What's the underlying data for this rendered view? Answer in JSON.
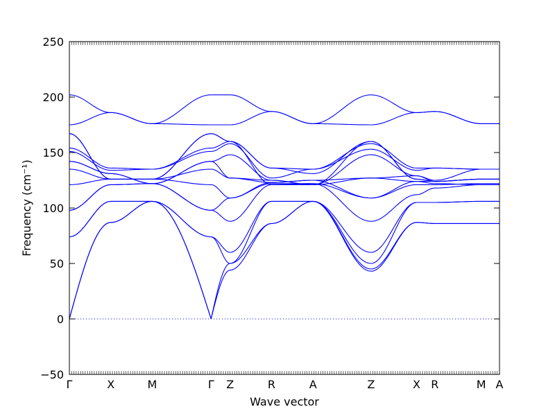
{
  "chart_data": {
    "type": "line",
    "title": "",
    "xlabel": "Wave vector",
    "ylabel": "Frequency (cm⁻¹)",
    "ylim": [
      -50,
      250
    ],
    "yticks": [
      -50,
      0,
      50,
      100,
      150,
      200,
      250
    ],
    "grid": false,
    "legend": "none",
    "line_color": "#0000ff",
    "zero_line_color": "#0000ff",
    "xlabels": [
      "Γ",
      "X",
      "M",
      "Γ",
      "Z",
      "R",
      "A",
      "Z",
      "X",
      "R",
      "M",
      "A"
    ],
    "xlabel_positions": [
      0.0,
      0.5,
      1.0,
      1.71,
      1.94,
      2.44,
      2.94,
      3.64,
      4.19,
      4.41,
      4.97,
      5.19
    ],
    "x_range": [
      0.0,
      5.19
    ],
    "segments": [
      {
        "from": 0.0,
        "to": 0.5,
        "bands": [
          [
            0,
            87
          ],
          [
            0,
            87
          ],
          [
            74,
            106
          ],
          [
            74,
            106
          ],
          [
            98,
            121
          ],
          [
            98,
            121
          ],
          [
            121,
            126
          ],
          [
            135,
            126
          ],
          [
            142,
            131
          ],
          [
            142,
            131
          ],
          [
            151,
            134
          ],
          [
            154,
            136
          ],
          [
            167,
            126
          ],
          [
            167,
            126
          ],
          [
            175,
            186
          ],
          [
            202,
            186
          ]
        ]
      },
      {
        "from": 0.5,
        "to": 1.0,
        "bands": [
          [
            87,
            106
          ],
          [
            87,
            106
          ],
          [
            106,
            106
          ],
          [
            106,
            106
          ],
          [
            121,
            122
          ],
          [
            121,
            122
          ],
          [
            126,
            126
          ],
          [
            126,
            126
          ],
          [
            131,
            122
          ],
          [
            131,
            122
          ],
          [
            134,
            135
          ],
          [
            136,
            135
          ],
          [
            126,
            126
          ],
          [
            126,
            126
          ],
          [
            186,
            176
          ],
          [
            186,
            176
          ]
        ]
      },
      {
        "from": 1.0,
        "to": 1.71,
        "bands": [
          [
            106,
            0
          ],
          [
            106,
            0
          ],
          [
            106,
            74
          ],
          [
            106,
            74
          ],
          [
            122,
            98
          ],
          [
            122,
            98
          ],
          [
            126,
            121
          ],
          [
            126,
            135
          ],
          [
            122,
            142
          ],
          [
            122,
            142
          ],
          [
            135,
            151
          ],
          [
            135,
            154
          ],
          [
            126,
            167
          ],
          [
            126,
            167
          ],
          [
            176,
            175
          ],
          [
            176,
            202
          ]
        ]
      },
      {
        "from": 1.71,
        "to": 1.94,
        "bands": [
          [
            0,
            44
          ],
          [
            0,
            50
          ],
          [
            74,
            50
          ],
          [
            74,
            60
          ],
          [
            98,
            88
          ],
          [
            98,
            109
          ],
          [
            121,
            109
          ],
          [
            135,
            127
          ],
          [
            142,
            127
          ],
          [
            142,
            148
          ],
          [
            151,
            158
          ],
          [
            154,
            160
          ],
          [
            167,
            160
          ],
          [
            167,
            160
          ],
          [
            175,
            175
          ],
          [
            202,
            202
          ]
        ]
      },
      {
        "from": 1.94,
        "to": 2.44,
        "bands": [
          [
            44,
            86
          ],
          [
            50,
            86
          ],
          [
            50,
            106
          ],
          [
            60,
            106
          ],
          [
            88,
            121
          ],
          [
            109,
            122
          ],
          [
            109,
            123
          ],
          [
            127,
            123
          ],
          [
            127,
            125
          ],
          [
            148,
            125
          ],
          [
            158,
            127
          ],
          [
            160,
            136
          ],
          [
            160,
            136
          ],
          [
            160,
            121
          ],
          [
            175,
            187
          ],
          [
            202,
            187
          ]
        ]
      },
      {
        "from": 2.44,
        "to": 2.94,
        "bands": [
          [
            86,
            106
          ],
          [
            86,
            106
          ],
          [
            106,
            106
          ],
          [
            106,
            106
          ],
          [
            121,
            122
          ],
          [
            122,
            122
          ],
          [
            123,
            125
          ],
          [
            123,
            125
          ],
          [
            125,
            121
          ],
          [
            125,
            121
          ],
          [
            127,
            135
          ],
          [
            136,
            135
          ],
          [
            136,
            131
          ],
          [
            121,
            121
          ],
          [
            187,
            176
          ],
          [
            187,
            176
          ]
        ]
      },
      {
        "from": 2.94,
        "to": 3.64,
        "bands": [
          [
            106,
            43
          ],
          [
            106,
            45
          ],
          [
            106,
            50
          ],
          [
            106,
            60
          ],
          [
            122,
            88
          ],
          [
            122,
            109
          ],
          [
            125,
            109
          ],
          [
            125,
            127
          ],
          [
            121,
            127
          ],
          [
            121,
            148
          ],
          [
            135,
            153
          ],
          [
            135,
            158
          ],
          [
            131,
            160
          ],
          [
            121,
            160
          ],
          [
            176,
            175
          ],
          [
            176,
            202
          ]
        ]
      },
      {
        "from": 3.64,
        "to": 4.19,
        "bands": [
          [
            43,
            87
          ],
          [
            45,
            87
          ],
          [
            50,
            105
          ],
          [
            60,
            105
          ],
          [
            88,
            112
          ],
          [
            109,
            121
          ],
          [
            109,
            124
          ],
          [
            127,
            124
          ],
          [
            127,
            129
          ],
          [
            148,
            129
          ],
          [
            153,
            134
          ],
          [
            158,
            136
          ],
          [
            160,
            126
          ],
          [
            160,
            126
          ],
          [
            175,
            186
          ],
          [
            202,
            186
          ]
        ]
      },
      {
        "from": 4.19,
        "to": 4.41,
        "bands": [
          [
            87,
            86
          ],
          [
            87,
            86
          ],
          [
            105,
            105
          ],
          [
            105,
            105
          ],
          [
            112,
            118
          ],
          [
            121,
            121
          ],
          [
            124,
            122
          ],
          [
            124,
            124
          ],
          [
            129,
            124
          ],
          [
            129,
            125
          ],
          [
            134,
            136
          ],
          [
            136,
            136
          ],
          [
            126,
            124
          ],
          [
            126,
            124
          ],
          [
            186,
            187
          ],
          [
            186,
            187
          ]
        ]
      },
      {
        "from": 4.41,
        "to": 4.97,
        "bands": [
          [
            86,
            86
          ],
          [
            86,
            86
          ],
          [
            105,
            106
          ],
          [
            105,
            106
          ],
          [
            118,
            121
          ],
          [
            121,
            122
          ],
          [
            122,
            121
          ],
          [
            124,
            126
          ],
          [
            124,
            126
          ],
          [
            125,
            135
          ],
          [
            136,
            135
          ],
          [
            136,
            135
          ],
          [
            124,
            126
          ],
          [
            124,
            126
          ],
          [
            187,
            176
          ],
          [
            187,
            176
          ]
        ]
      },
      {
        "from": 4.97,
        "to": 5.19,
        "bands": [
          [
            86,
            86
          ],
          [
            86,
            86
          ],
          [
            106,
            106
          ],
          [
            106,
            106
          ],
          [
            121,
            121
          ],
          [
            122,
            122
          ],
          [
            121,
            121
          ],
          [
            126,
            126
          ],
          [
            126,
            126
          ],
          [
            135,
            135
          ],
          [
            135,
            135
          ],
          [
            135,
            135
          ],
          [
            126,
            126
          ],
          [
            126,
            126
          ],
          [
            176,
            176
          ],
          [
            176,
            176
          ]
        ]
      }
    ]
  }
}
